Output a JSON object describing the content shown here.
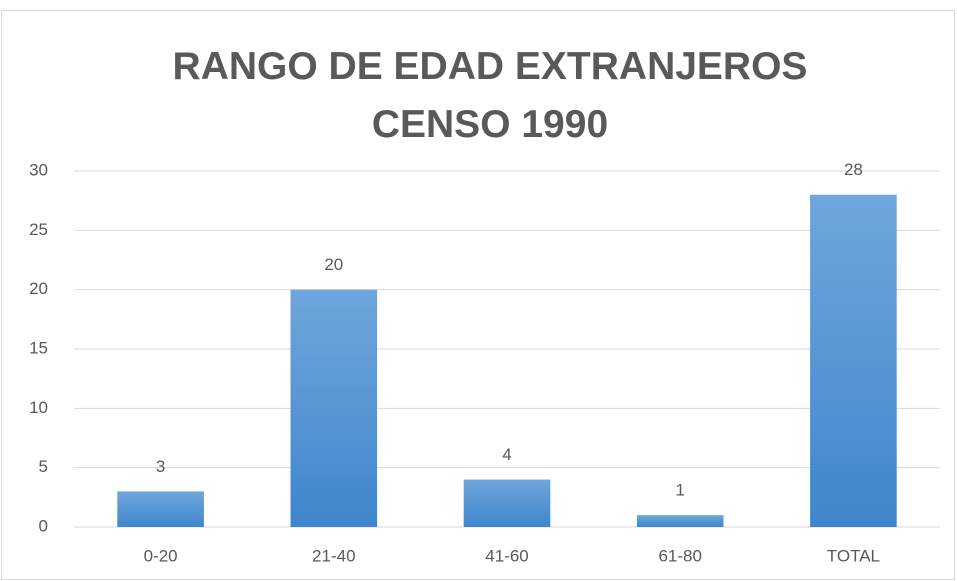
{
  "chart_data": {
    "type": "bar",
    "title": "RANGO DE EDAD EXTRANJEROS CENSO 1990",
    "categories": [
      "0-20",
      "21-40",
      "41-60",
      "61-80",
      "TOTAL"
    ],
    "values": [
      3,
      20,
      4,
      1,
      28
    ],
    "color": "#4a90d9",
    "ylim": [
      0,
      30
    ],
    "yticks": [
      0,
      5,
      10,
      15,
      20,
      25,
      30
    ],
    "grid": true
  }
}
